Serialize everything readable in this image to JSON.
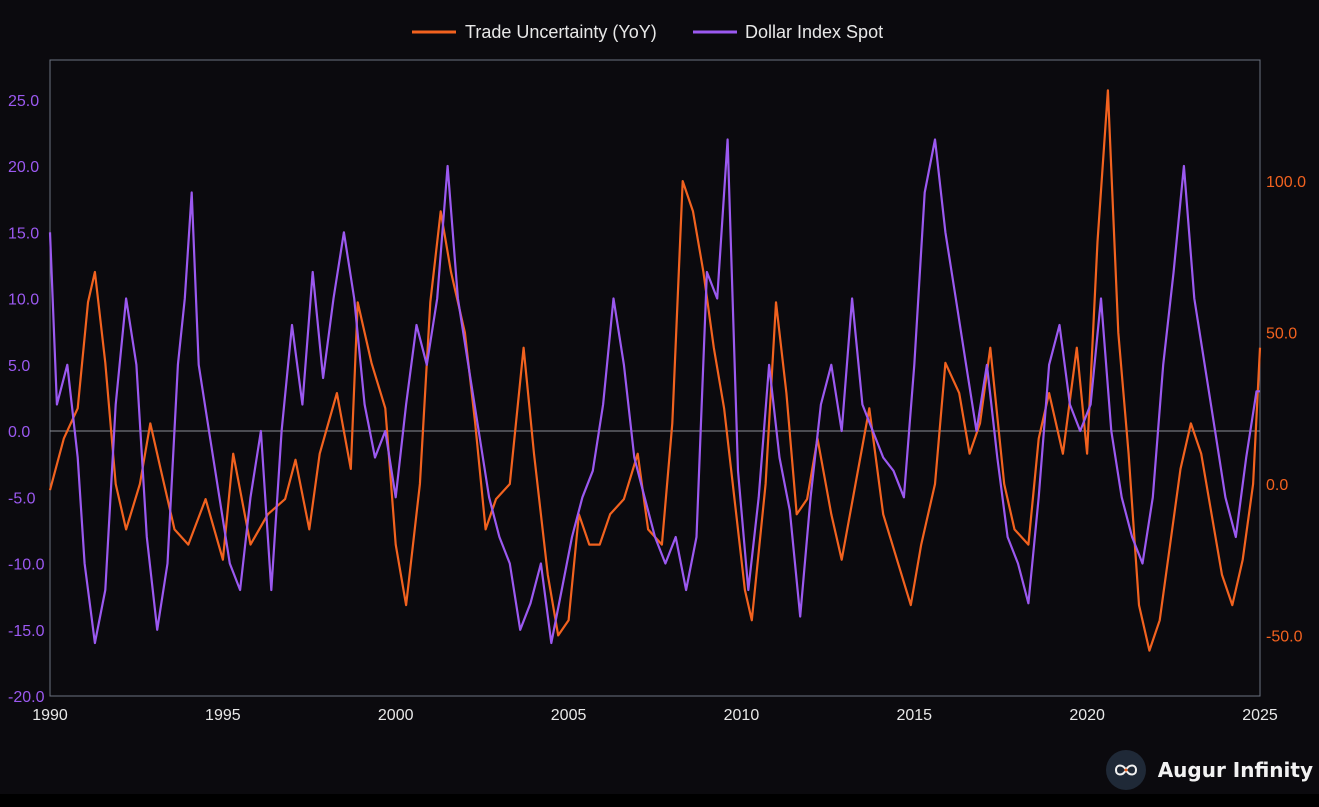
{
  "chart_data": {
    "type": "line",
    "title": "",
    "xlabel": "",
    "ylabel_left": "",
    "ylabel_right": "",
    "xlim": [
      1990,
      2025
    ],
    "ylim_left": [
      -20,
      28
    ],
    "ylim_right": [
      -70,
      140
    ],
    "x_ticks": [
      "1990",
      "1995",
      "2000",
      "2005",
      "2010",
      "2015",
      "2020",
      "2025"
    ],
    "y_left_ticks": [
      "25.0",
      "20.0",
      "15.0",
      "10.0",
      "5.0",
      "0.0",
      "-5.0",
      "-10.0",
      "-15.0",
      "-20.0"
    ],
    "y_right_ticks": [
      "100.0",
      "50.0",
      "0.0",
      "-50.0"
    ],
    "grid": false,
    "zero_line": true,
    "legend_position": "top-center",
    "series": [
      {
        "name": "Trade Uncertainty (YoY)",
        "axis": "right",
        "color": "#f2621f",
        "points": [
          [
            1990.0,
            -2
          ],
          [
            1990.4,
            15
          ],
          [
            1990.8,
            25
          ],
          [
            1991.1,
            60
          ],
          [
            1991.3,
            70
          ],
          [
            1991.6,
            40
          ],
          [
            1991.9,
            0
          ],
          [
            1992.2,
            -15
          ],
          [
            1992.6,
            0
          ],
          [
            1992.9,
            20
          ],
          [
            1993.2,
            5
          ],
          [
            1993.6,
            -15
          ],
          [
            1994.0,
            -20
          ],
          [
            1994.5,
            -5
          ],
          [
            1995.0,
            -25
          ],
          [
            1995.3,
            10
          ],
          [
            1995.8,
            -20
          ],
          [
            1996.3,
            -10
          ],
          [
            1996.8,
            -5
          ],
          [
            1997.1,
            8
          ],
          [
            1997.5,
            -15
          ],
          [
            1997.8,
            10
          ],
          [
            1998.3,
            30
          ],
          [
            1998.7,
            5
          ],
          [
            1998.9,
            60
          ],
          [
            1999.3,
            40
          ],
          [
            1999.7,
            25
          ],
          [
            2000.0,
            -20
          ],
          [
            2000.3,
            -40
          ],
          [
            2000.7,
            0
          ],
          [
            2001.0,
            60
          ],
          [
            2001.3,
            90
          ],
          [
            2001.6,
            70
          ],
          [
            2002.0,
            50
          ],
          [
            2002.3,
            20
          ],
          [
            2002.6,
            -15
          ],
          [
            2002.9,
            -5
          ],
          [
            2003.3,
            0
          ],
          [
            2003.7,
            45
          ],
          [
            2004.0,
            10
          ],
          [
            2004.4,
            -30
          ],
          [
            2004.7,
            -50
          ],
          [
            2005.0,
            -45
          ],
          [
            2005.3,
            -10
          ],
          [
            2005.6,
            -20
          ],
          [
            2005.9,
            -20
          ],
          [
            2006.2,
            -10
          ],
          [
            2006.6,
            -5
          ],
          [
            2007.0,
            10
          ],
          [
            2007.3,
            -15
          ],
          [
            2007.7,
            -20
          ],
          [
            2008.0,
            20
          ],
          [
            2008.3,
            100
          ],
          [
            2008.6,
            90
          ],
          [
            2008.9,
            70
          ],
          [
            2009.2,
            45
          ],
          [
            2009.5,
            25
          ],
          [
            2009.8,
            -5
          ],
          [
            2010.1,
            -35
          ],
          [
            2010.3,
            -45
          ],
          [
            2010.7,
            0
          ],
          [
            2011.0,
            60
          ],
          [
            2011.3,
            30
          ],
          [
            2011.6,
            -10
          ],
          [
            2011.9,
            -5
          ],
          [
            2012.2,
            15
          ],
          [
            2012.6,
            -10
          ],
          [
            2012.9,
            -25
          ],
          [
            2013.3,
            0
          ],
          [
            2013.7,
            25
          ],
          [
            2014.1,
            -10
          ],
          [
            2014.5,
            -25
          ],
          [
            2014.9,
            -40
          ],
          [
            2015.2,
            -20
          ],
          [
            2015.6,
            0
          ],
          [
            2015.9,
            40
          ],
          [
            2016.3,
            30
          ],
          [
            2016.6,
            10
          ],
          [
            2016.9,
            20
          ],
          [
            2017.2,
            45
          ],
          [
            2017.6,
            0
          ],
          [
            2017.9,
            -15
          ],
          [
            2018.3,
            -20
          ],
          [
            2018.6,
            15
          ],
          [
            2018.9,
            30
          ],
          [
            2019.3,
            10
          ],
          [
            2019.7,
            45
          ],
          [
            2020.0,
            10
          ],
          [
            2020.3,
            80
          ],
          [
            2020.6,
            130
          ],
          [
            2020.9,
            50
          ],
          [
            2021.2,
            10
          ],
          [
            2021.5,
            -40
          ],
          [
            2021.8,
            -55
          ],
          [
            2022.1,
            -45
          ],
          [
            2022.4,
            -20
          ],
          [
            2022.7,
            5
          ],
          [
            2023.0,
            20
          ],
          [
            2023.3,
            10
          ],
          [
            2023.6,
            -10
          ],
          [
            2023.9,
            -30
          ],
          [
            2024.2,
            -40
          ],
          [
            2024.5,
            -25
          ],
          [
            2024.8,
            0
          ],
          [
            2025.0,
            45
          ]
        ]
      },
      {
        "name": "Dollar Index Spot",
        "axis": "left",
        "color": "#9b59f0",
        "points": [
          [
            1990.0,
            15
          ],
          [
            1990.2,
            2
          ],
          [
            1990.5,
            5
          ],
          [
            1990.8,
            -2
          ],
          [
            1991.0,
            -10
          ],
          [
            1991.3,
            -16
          ],
          [
            1991.6,
            -12
          ],
          [
            1991.9,
            2
          ],
          [
            1992.2,
            10
          ],
          [
            1992.5,
            5
          ],
          [
            1992.8,
            -8
          ],
          [
            1993.1,
            -15
          ],
          [
            1993.4,
            -10
          ],
          [
            1993.7,
            5
          ],
          [
            1993.9,
            10
          ],
          [
            1994.1,
            18
          ],
          [
            1994.3,
            5
          ],
          [
            1994.6,
            0
          ],
          [
            1994.9,
            -5
          ],
          [
            1995.2,
            -10
          ],
          [
            1995.5,
            -12
          ],
          [
            1995.8,
            -5
          ],
          [
            1996.1,
            0
          ],
          [
            1996.4,
            -12
          ],
          [
            1996.7,
            0
          ],
          [
            1997.0,
            8
          ],
          [
            1997.3,
            2
          ],
          [
            1997.6,
            12
          ],
          [
            1997.9,
            4
          ],
          [
            1998.2,
            10
          ],
          [
            1998.5,
            15
          ],
          [
            1998.8,
            10
          ],
          [
            1999.1,
            2
          ],
          [
            1999.4,
            -2
          ],
          [
            1999.7,
            0
          ],
          [
            2000.0,
            -5
          ],
          [
            2000.3,
            2
          ],
          [
            2000.6,
            8
          ],
          [
            2000.9,
            5
          ],
          [
            2001.2,
            10
          ],
          [
            2001.5,
            20
          ],
          [
            2001.8,
            10
          ],
          [
            2002.1,
            5
          ],
          [
            2002.4,
            0
          ],
          [
            2002.7,
            -5
          ],
          [
            2003.0,
            -8
          ],
          [
            2003.3,
            -10
          ],
          [
            2003.6,
            -15
          ],
          [
            2003.9,
            -13
          ],
          [
            2004.2,
            -10
          ],
          [
            2004.5,
            -16
          ],
          [
            2004.8,
            -12
          ],
          [
            2005.1,
            -8
          ],
          [
            2005.4,
            -5
          ],
          [
            2005.7,
            -3
          ],
          [
            2006.0,
            2
          ],
          [
            2006.3,
            10
          ],
          [
            2006.6,
            5
          ],
          [
            2006.9,
            -2
          ],
          [
            2007.2,
            -5
          ],
          [
            2007.5,
            -8
          ],
          [
            2007.8,
            -10
          ],
          [
            2008.1,
            -8
          ],
          [
            2008.4,
            -12
          ],
          [
            2008.7,
            -8
          ],
          [
            2009.0,
            12
          ],
          [
            2009.3,
            10
          ],
          [
            2009.6,
            22
          ],
          [
            2009.9,
            -3
          ],
          [
            2010.2,
            -12
          ],
          [
            2010.5,
            -5
          ],
          [
            2010.8,
            5
          ],
          [
            2011.1,
            -2
          ],
          [
            2011.4,
            -6
          ],
          [
            2011.7,
            -14
          ],
          [
            2012.0,
            -5
          ],
          [
            2012.3,
            2
          ],
          [
            2012.6,
            5
          ],
          [
            2012.9,
            0
          ],
          [
            2013.2,
            10
          ],
          [
            2013.5,
            2
          ],
          [
            2013.8,
            0
          ],
          [
            2014.1,
            -2
          ],
          [
            2014.4,
            -3
          ],
          [
            2014.7,
            -5
          ],
          [
            2015.0,
            5
          ],
          [
            2015.3,
            18
          ],
          [
            2015.6,
            22
          ],
          [
            2015.9,
            15
          ],
          [
            2016.2,
            10
          ],
          [
            2016.5,
            5
          ],
          [
            2016.8,
            0
          ],
          [
            2017.1,
            5
          ],
          [
            2017.4,
            -2
          ],
          [
            2017.7,
            -8
          ],
          [
            2018.0,
            -10
          ],
          [
            2018.3,
            -13
          ],
          [
            2018.6,
            -5
          ],
          [
            2018.9,
            5
          ],
          [
            2019.2,
            8
          ],
          [
            2019.5,
            2
          ],
          [
            2019.8,
            0
          ],
          [
            2020.1,
            2
          ],
          [
            2020.4,
            10
          ],
          [
            2020.7,
            0
          ],
          [
            2021.0,
            -5
          ],
          [
            2021.3,
            -8
          ],
          [
            2021.6,
            -10
          ],
          [
            2021.9,
            -5
          ],
          [
            2022.2,
            5
          ],
          [
            2022.5,
            12
          ],
          [
            2022.8,
            20
          ],
          [
            2023.1,
            10
          ],
          [
            2023.4,
            5
          ],
          [
            2023.7,
            0
          ],
          [
            2024.0,
            -5
          ],
          [
            2024.3,
            -8
          ],
          [
            2024.6,
            -2
          ],
          [
            2024.9,
            3
          ],
          [
            2025.0,
            3
          ]
        ]
      }
    ]
  },
  "brand": {
    "name": "Augur Infinity",
    "icon": "infinity-logo-icon"
  }
}
